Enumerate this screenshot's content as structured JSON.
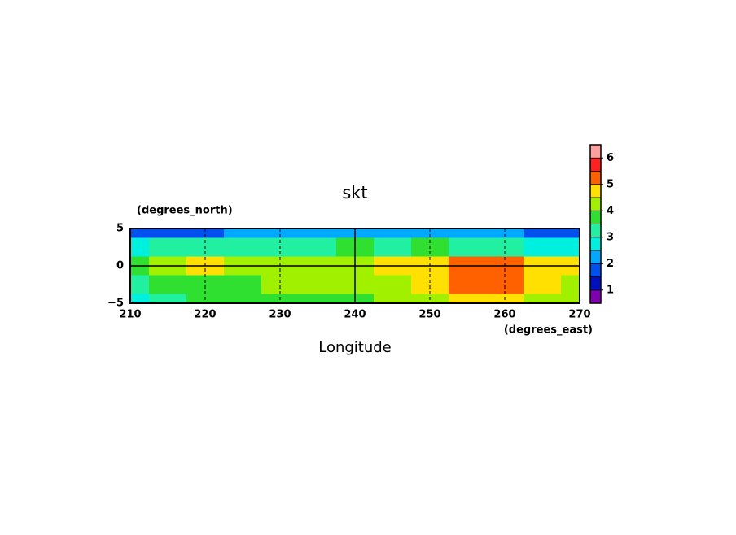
{
  "chart_data": {
    "type": "contour",
    "title": "skt",
    "x_label": "Longitude",
    "x_units": "(degrees_east)",
    "y_units": "(degrees_north)",
    "x": [
      210,
      215,
      220,
      225,
      230,
      235,
      240,
      245,
      250,
      255,
      260,
      265,
      270
    ],
    "y": [
      5,
      2.5,
      0,
      -2.5,
      -5
    ],
    "z": [
      [
        1.6,
        1.7,
        1.8,
        2.1,
        2.2,
        2.3,
        2.3,
        2.3,
        2.2,
        2.2,
        2.0,
        1.7,
        1.6
      ],
      [
        2.8,
        3.0,
        3.1,
        3.2,
        3.3,
        3.4,
        3.5,
        3.4,
        3.5,
        3.3,
        3.1,
        2.7,
        2.5
      ],
      [
        3.9,
        4.2,
        4.6,
        4.3,
        4.4,
        4.4,
        4.45,
        4.6,
        4.9,
        5.2,
        5.0,
        4.8,
        4.6
      ],
      [
        3.2,
        3.5,
        3.8,
        3.9,
        4.0,
        4.1,
        4.1,
        4.3,
        4.8,
        5.3,
        5.3,
        4.9,
        4.4
      ],
      [
        2.8,
        3.0,
        3.5,
        3.7,
        3.8,
        3.9,
        3.9,
        4.1,
        4.3,
        4.5,
        4.6,
        4.4,
        4.2
      ]
    ],
    "levels": [
      0.5,
      1,
      1.5,
      2,
      2.5,
      3,
      3.5,
      4,
      4.5,
      5,
      5.5,
      6,
      6.5
    ],
    "colors": [
      "#8000b0",
      "#0010c0",
      "#0050f0",
      "#00a8ff",
      "#00f0e0",
      "#20f0a0",
      "#30e030",
      "#a0f000",
      "#ffe000",
      "#ff6000",
      "#ff2020",
      "#ffa0a0"
    ],
    "colorbar_ticks": [
      1,
      2,
      3,
      4,
      5,
      6
    ],
    "xlim": [
      210,
      270
    ],
    "xticks": [
      210,
      220,
      230,
      240,
      250,
      260,
      270
    ],
    "ylim": [
      -5,
      5
    ],
    "yticks": [
      {
        "value": -5,
        "label": "−5"
      },
      0,
      5
    ],
    "grid": true,
    "reference_x": [
      240
    ],
    "reference_y": [
      0
    ]
  }
}
